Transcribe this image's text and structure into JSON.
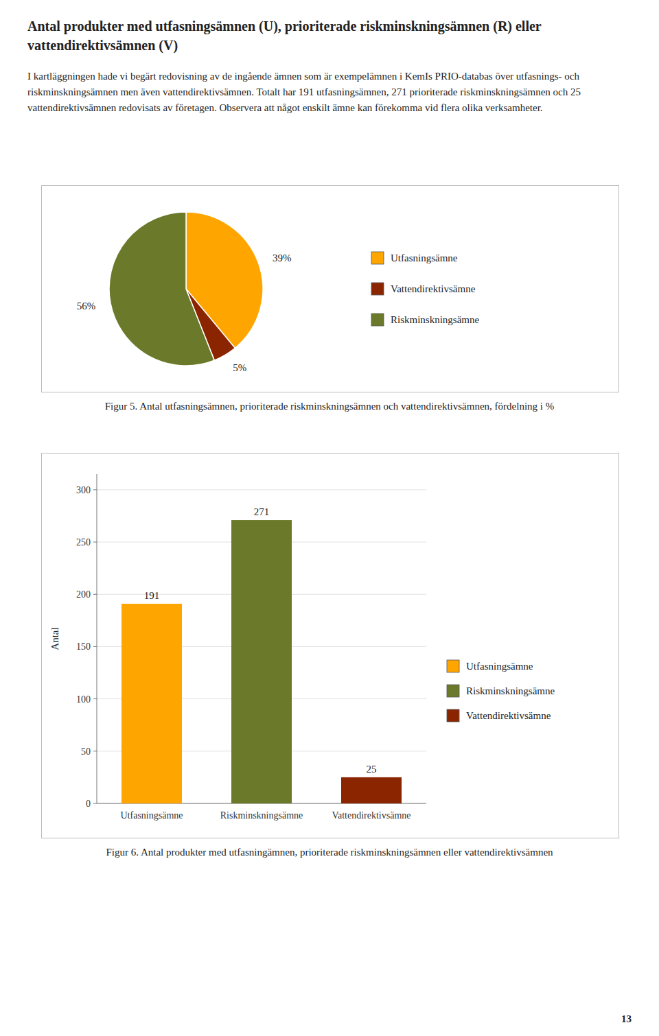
{
  "title": "Antal produkter med utfasningsämnen (U), prioriterade riskminskningsämnen (R) eller vattendirektivsämnen (V)",
  "annotations": [
    "I kartläggningen hade vi begärt redovisning av de ingående ämnen som är exempelämnen i KemIs PRIO-databas över utfasnings- och riskminskningsämnen men även vattendirektivsämnen. Totalt har 191 utfasningsämnen, 271 prioriterade riskminskningsämnen och 25 vattendirektivsämnen redovisats av företagen. Observera att något enskilt ämne kan förekomma vid flera olika verksamheter.",
    "13"
  ],
  "chart_data": [
    {
      "type": "pie",
      "title": "Figur 5. Antal utfasningsämnen, prioriterade riskminskningsämnen och vattendirektivsämnen, fördelning i %",
      "categories": [
        "Utfasningsämne",
        "Vattendirektivsämne",
        "Riskminskningsämne"
      ],
      "values": [
        39,
        5,
        56
      ],
      "value_labels": [
        "39%",
        "5%",
        "56%"
      ],
      "colors": [
        "#FFA500",
        "#8B2500",
        "#6B7A2A"
      ],
      "data_labels": true,
      "legend": "right"
    },
    {
      "type": "bar",
      "title": "Figur 6. Antal produkter med utfasningämnen, prioriterade riskminskningsämnen eller vattendirektivsämnen",
      "categories": [
        "Utfasningsämne",
        "Riskminskningsämne",
        "Vattendirektivsämne"
      ],
      "values": [
        191,
        271,
        25
      ],
      "colors": [
        "#FFA500",
        "#6B7A2A",
        "#8B2500"
      ],
      "y_label": "Antal",
      "ylim": [
        0,
        315
      ],
      "yticks": [
        0,
        50,
        100,
        150,
        200,
        250,
        300
      ],
      "grid": true,
      "data_labels": true,
      "legend": "right"
    }
  ]
}
